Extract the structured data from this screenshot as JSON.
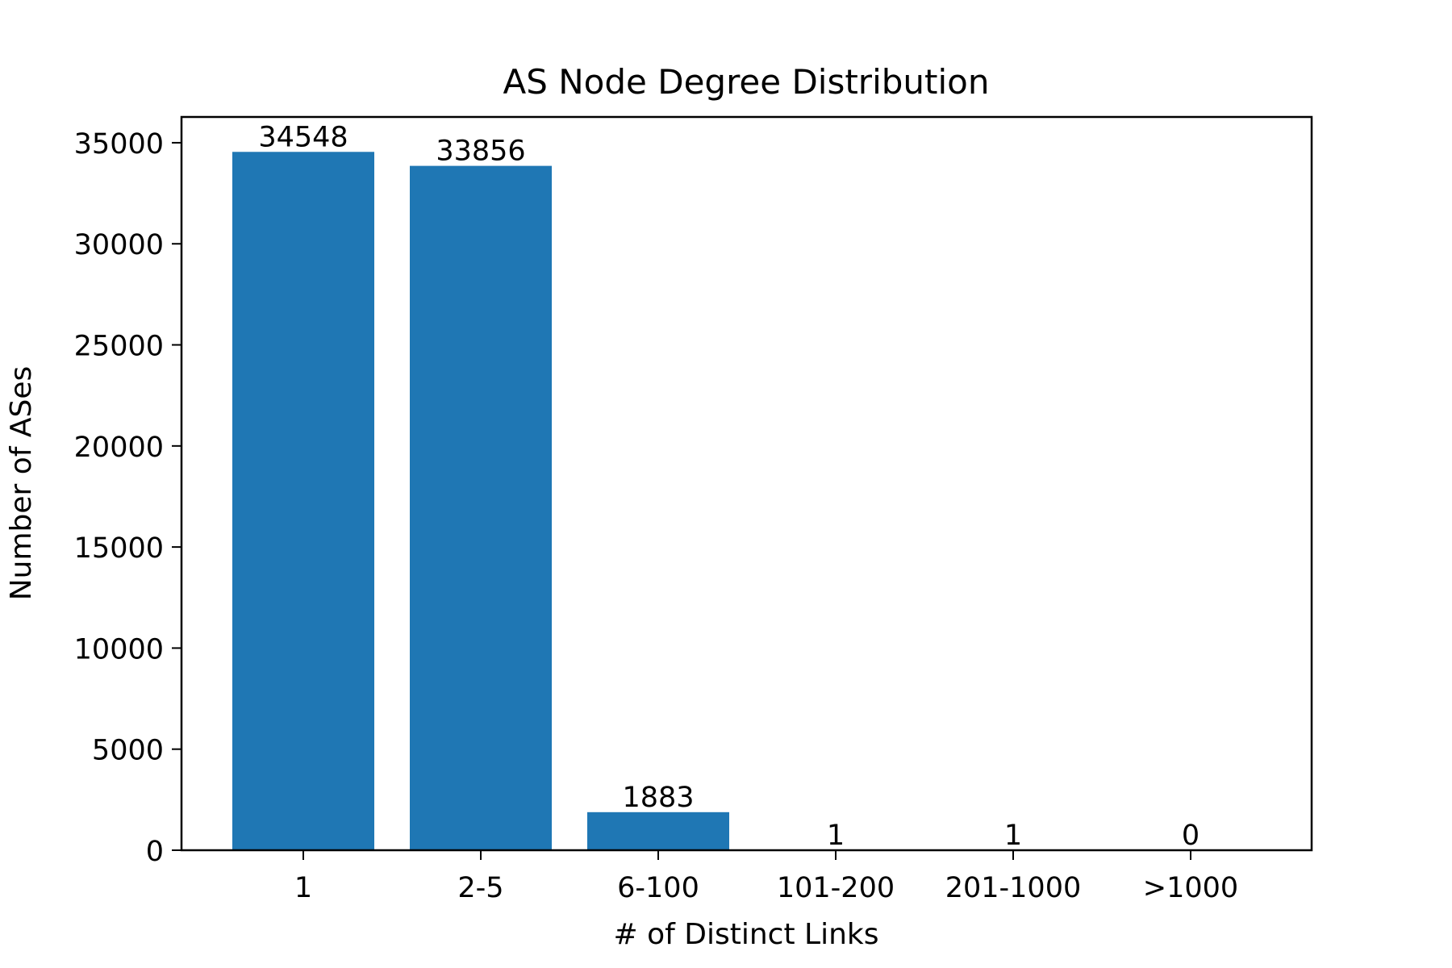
{
  "chart_data": {
    "type": "bar",
    "title": "AS Node Degree Distribution",
    "xlabel": "# of Distinct Links",
    "ylabel": "Number of ASes",
    "categories": [
      "1",
      "2-5",
      "6-100",
      "101-200",
      "201-1000",
      ">1000"
    ],
    "values": [
      34548,
      33856,
      1883,
      1,
      1,
      0
    ],
    "data_labels": [
      "34548",
      "33856",
      "1883",
      "1",
      "1",
      "0"
    ],
    "ylim": [
      0,
      36275
    ],
    "yticks": [
      0,
      5000,
      10000,
      15000,
      20000,
      25000,
      30000,
      35000
    ],
    "ytick_labels": [
      "0",
      "5000",
      "10000",
      "15000",
      "20000",
      "25000",
      "30000",
      "35000"
    ],
    "bar_color": "#1f77b4",
    "grid": false,
    "legend": "none"
  }
}
